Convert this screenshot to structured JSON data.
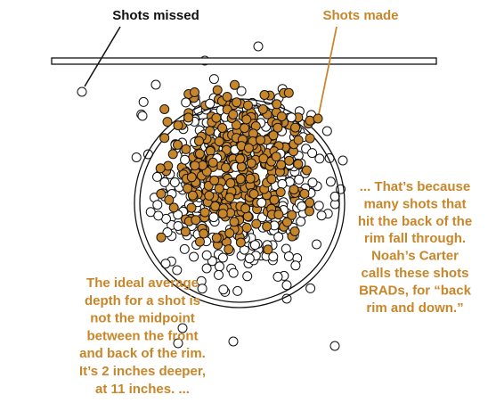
{
  "labels": {
    "missed": "Shots missed",
    "made": "Shots made"
  },
  "annotations": {
    "left": [
      "The ideal average",
      "depth for a shot is",
      "not the midpoint",
      "between the front",
      "and back of the rim.",
      "It’s 2 inches deeper,",
      "at 11 inches. ..."
    ],
    "right": [
      "... That’s because",
      "many shots that",
      "hit the back of the",
      "rim fall through.",
      "Noah’s Carter",
      "calls these shots",
      "BRADs, for “back",
      "rim and down.”"
    ]
  }
}
